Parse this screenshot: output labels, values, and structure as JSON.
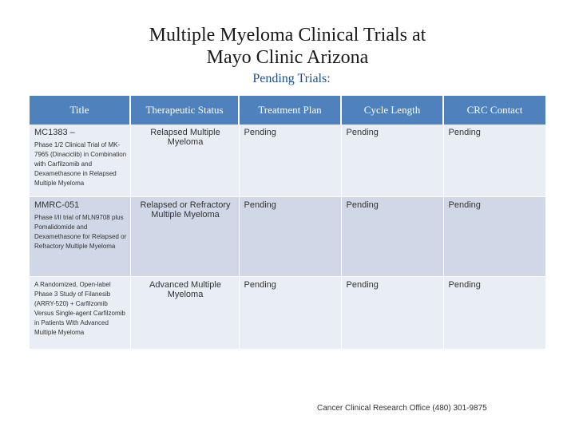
{
  "header": {
    "title_line1": "Multiple Myeloma Clinical Trials at",
    "title_line2": "Mayo Clinic Arizona",
    "subtitle": "Pending Trials:"
  },
  "table": {
    "columns": [
      "Title",
      "Therapeutic Status",
      "Treatment Plan",
      "Cycle Length",
      "CRC Contact"
    ],
    "rows": [
      {
        "code": "MC1383 –",
        "description": "Phase 1/2 Clinical Trial of MK-7965 (Dinaciclib) in Combination with Carfilzomib and Dexamethasone in Relapsed Multiple Myeloma",
        "status": "Relapsed Multiple Myeloma",
        "treatment_plan": "Pending",
        "cycle_length": "Pending",
        "crc_contact": "Pending"
      },
      {
        "code": "MMRC-051",
        "description": "Phase I/II trial of MLN9708 plus Pomalidomide and Dexamethasone for Relapsed or Refractory Multiple Myeloma",
        "status": "Relapsed or Refractory Multiple Myeloma",
        "treatment_plan": "Pending",
        "cycle_length": "Pending",
        "crc_contact": "Pending"
      },
      {
        "code": "",
        "description": "A Randomized, Open-label Phase 3 Study of Filanesib (ARRY-520) + Carfilzomib Versus Single-agent Carfilzomib in Patients With Advanced Multiple Myeloma",
        "status": "Advanced Multiple Myeloma",
        "treatment_plan": "Pending",
        "cycle_length": "Pending",
        "crc_contact": "Pending"
      }
    ]
  },
  "footer": "Cancer Clinical Research Office (480) 301-9875"
}
